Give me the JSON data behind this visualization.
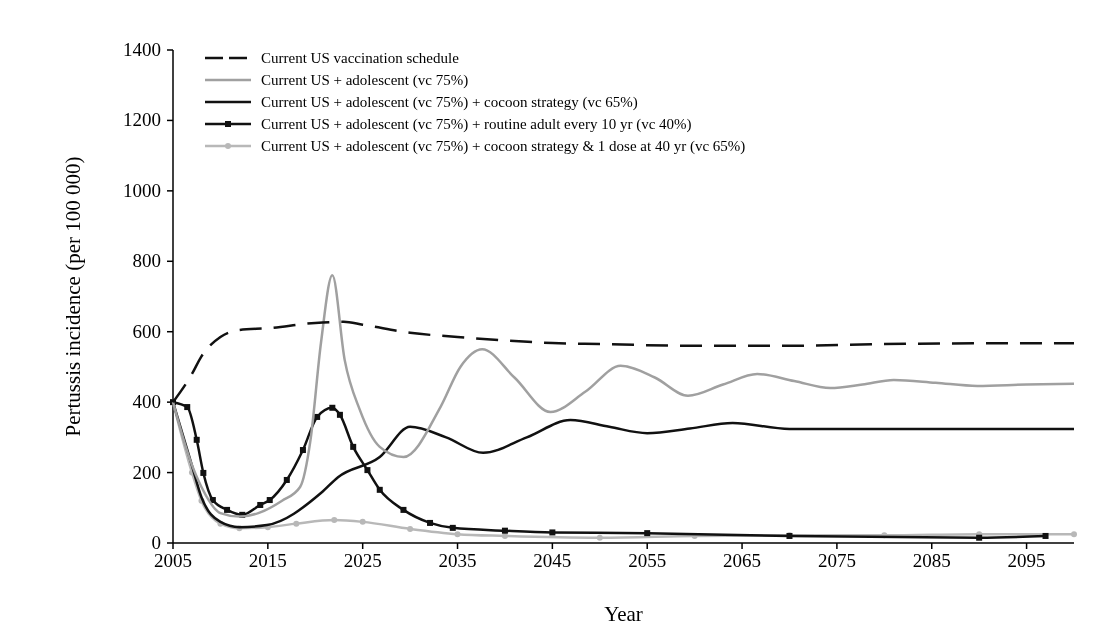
{
  "chart_data": {
    "type": "line",
    "xlabel": "Year",
    "ylabel": "Pertussis incidence (per 100 000)",
    "xlim": [
      2005,
      2100
    ],
    "xticks": [
      2005,
      2015,
      2025,
      2035,
      2045,
      2055,
      2065,
      2075,
      2085,
      2095
    ],
    "ylim": [
      0,
      1400
    ],
    "yticks": [
      0,
      200,
      400,
      600,
      800,
      1000,
      1200,
      1400
    ],
    "grid": false,
    "legend": "top left",
    "series": [
      {
        "name": "Current US vaccination schedule",
        "color": "#111111",
        "line_style": "dashed",
        "marker": "none",
        "x": [
          2005,
          2007,
          2008,
          2010,
          2012,
          2015,
          2020,
          2023,
          2025,
          2030,
          2035,
          2040,
          2045,
          2050,
          2060,
          2070,
          2080,
          2090,
          2100
        ],
        "values": [
          400,
          480,
          530,
          585,
          605,
          610,
          625,
          628,
          620,
          597,
          585,
          575,
          568,
          565,
          560,
          560,
          565,
          567,
          567
        ]
      },
      {
        "name": "Current US + adolescent (vc 75%)",
        "color": "#a0a0a0",
        "line_style": "solid",
        "marker": "none",
        "x": [
          2005,
          2006.8,
          2008,
          2010,
          2012,
          2014,
          2016.5,
          2018.4,
          2019.5,
          2020.6,
          2021.8,
          2023.1,
          2024.7,
          2026.8,
          2029.3,
          2033.2,
          2035.3,
          2037.6,
          2041,
          2044.8,
          2048.5,
          2052.2,
          2055.8,
          2059.3,
          2063,
          2066.6,
          2070.5,
          2074.3,
          2077.7,
          2081,
          2085.4,
          2089.8,
          2095,
          2100
        ],
        "values": [
          400,
          236,
          159,
          85,
          75,
          85,
          120,
          159,
          293,
          568,
          760,
          520,
          378,
          273,
          244,
          386,
          500,
          550,
          470,
          372,
          430,
          503,
          470,
          418,
          450,
          480,
          460,
          440,
          450,
          463,
          455,
          446,
          450,
          452
        ]
      },
      {
        "name": "Current US + adolescent (vc 75%) + cocoon strategy (vc 65%)",
        "color": "#111111",
        "line_style": "solid",
        "marker": "none",
        "x": [
          2005,
          2007,
          2008,
          2010,
          2012,
          2014.9,
          2020.6,
          2022.4,
          2026.8,
          2030,
          2033.8,
          2037.7,
          2042.3,
          2046.9,
          2051,
          2055,
          2059.5,
          2064,
          2070,
          2080,
          2090,
          2100
        ],
        "values": [
          400,
          220,
          130,
          60,
          45,
          51,
          142,
          187,
          244,
          330,
          300,
          256,
          300,
          349,
          330,
          312,
          325,
          341,
          324,
          324,
          324,
          324
        ]
      },
      {
        "name": "Current US + adolescent (vc 75%) + routine adult every 10 yr (vc 40%)",
        "color": "#111111",
        "line_style": "solid",
        "marker": "square",
        "x": [
          2005,
          2006.5,
          2007.5,
          2008.2,
          2009.2,
          2010.7,
          2012.3,
          2014.2,
          2015.2,
          2017,
          2018.7,
          2020.2,
          2021.8,
          2022.6,
          2024,
          2025.5,
          2026.8,
          2029.3,
          2032.1,
          2034.5,
          2040,
          2045,
          2055,
          2070,
          2090,
          2097
        ],
        "values": [
          400,
          386,
          293,
          199,
          122,
          94,
          80,
          108,
          122,
          179,
          264,
          358,
          384,
          364,
          273,
          207,
          151,
          94,
          57,
          43,
          35,
          30,
          28,
          20,
          15,
          20
        ]
      },
      {
        "name": "Current US + adolescent (vc 75%) + cocoon strategy & 1 dose at 40 yr (vc 65%)",
        "color": "#b8b8b8",
        "line_style": "solid",
        "marker": "circle",
        "x": [
          2005,
          2007,
          2008,
          2010,
          2012,
          2015,
          2018,
          2022,
          2025,
          2030,
          2035,
          2040,
          2050,
          2060,
          2070,
          2080,
          2090,
          2100
        ],
        "values": [
          400,
          200,
          120,
          55,
          42,
          45,
          55,
          65,
          60,
          40,
          25,
          20,
          15,
          20,
          22,
          22,
          25,
          25
        ]
      }
    ]
  }
}
